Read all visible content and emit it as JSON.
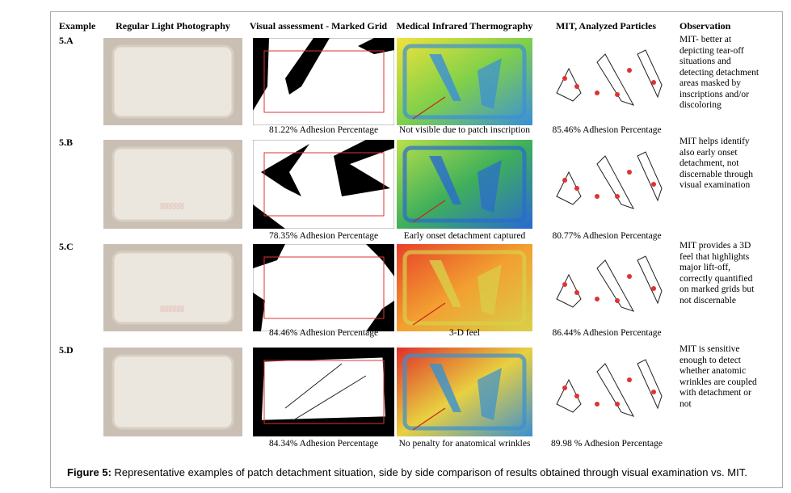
{
  "header": {
    "example": "Example",
    "photo": "Regular Light Photography",
    "grid": "Visual assessment - Marked Grid",
    "thermo": "Medical Infrared Thermography",
    "mit": "MIT, Analyzed Particles",
    "observation": "Observation"
  },
  "rows": [
    {
      "example": "5.A",
      "grid_caption": "81.22% Adhesion Percentage",
      "thermo_caption": "Not visible due to patch inscription",
      "mit_caption": "85.46% Adhesion Percentage",
      "observation": "MIT- better at depicting tear-off situations and detecting detachment areas masked by inscriptions and/or discoloring"
    },
    {
      "example": "5.B",
      "grid_caption": "78.35% Adhesion Percentage",
      "thermo_caption": "Early onset detachment captured",
      "mit_caption": "80.77% Adhesion Percentage",
      "observation": "MIT helps identify also early onset detachment, not discernable through visual examination"
    },
    {
      "example": "5.C",
      "grid_caption": "84.46% Adhesion Percentage",
      "thermo_caption": "3-D feel",
      "mit_caption": "86.44% Adhesion Percentage",
      "observation": "MIT provides a 3D feel that highlights major lift-off, correctly quantified on marked grids but not discernable"
    },
    {
      "example": "5.D",
      "grid_caption": "84.34% Adhesion Percentage",
      "thermo_caption": "No penalty for anatomical wrinkles",
      "mit_caption": "89.98 % Adhesion Percentage",
      "observation": "MIT is sensitive enough to detect whether anatomic wrinkles are coupled with detachment or not"
    }
  ],
  "caption": {
    "label": "Figure 5:",
    "text": "Representative examples of patch detachment situation, side by side comparison of results obtained through visual examination vs. MIT."
  }
}
